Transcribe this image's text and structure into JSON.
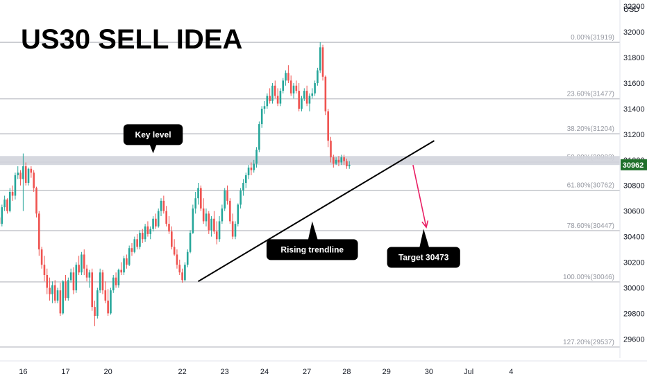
{
  "chart_data": {
    "type": "candlestick",
    "title": "US30 SELL IDEA",
    "currency": "USD",
    "y_ticks": [
      29600,
      29800,
      30000,
      30200,
      30400,
      30600,
      30800,
      31000,
      31200,
      31400,
      31600,
      31800,
      32000,
      32200
    ],
    "ylim": [
      29450,
      32250
    ],
    "x_labels": [
      {
        "label": "16",
        "idx": 9
      },
      {
        "label": "17",
        "idx": 25
      },
      {
        "label": "20",
        "idx": 41
      },
      {
        "label": "22",
        "idx": 69
      },
      {
        "label": "23",
        "idx": 85
      },
      {
        "label": "24",
        "idx": 100
      },
      {
        "label": "27",
        "idx": 116
      },
      {
        "label": "28",
        "idx": 131
      },
      {
        "label": "29",
        "idx": 146
      },
      {
        "label": "30",
        "idx": 162
      },
      {
        "label": "Jul",
        "idx": 177
      },
      {
        "label": "4",
        "idx": 193
      }
    ],
    "fib_levels": [
      {
        "label": "0.00%(31919)",
        "value": 31919
      },
      {
        "label": "23.60%(31477)",
        "value": 31477
      },
      {
        "label": "38.20%(31204)",
        "value": 31204
      },
      {
        "label": "50.00%(30983)",
        "value": 30983
      },
      {
        "label": "61.80%(30762)",
        "value": 30762
      },
      {
        "label": "78.60%(30447)",
        "value": 30447
      },
      {
        "label": "100.00%(30046)",
        "value": 30046
      },
      {
        "label": "127.20%(29537)",
        "value": 29537
      }
    ],
    "key_zone": [
      30960,
      31030
    ],
    "current_price": 30962,
    "current_price_label": "30962",
    "current_price_color": "#1f6f2a",
    "trendline": {
      "start": {
        "idx": 75,
        "value": 30050
      },
      "end": {
        "idx": 164,
        "value": 31150
      }
    },
    "projection": {
      "start": {
        "idx": 156,
        "value": 30960
      },
      "end": {
        "idx": 161,
        "value": 30473
      }
    },
    "projection_color": "#e91e63",
    "up_color": "#26a69a",
    "down_color": "#ef5350",
    "annotations": [
      {
        "text": "Key level",
        "anchor_idx": 58,
        "anchor_value": 31040,
        "pointer": "down"
      },
      {
        "text": "Rising trendline",
        "anchor_idx": 118,
        "anchor_value": 30520,
        "pointer": "up"
      },
      {
        "text": "Target 30473",
        "anchor_idx": 160,
        "anchor_value": 30460,
        "pointer": "up"
      }
    ],
    "candles": [
      [
        30550,
        30560,
        30480,
        30500
      ],
      [
        30500,
        30650,
        30480,
        30630
      ],
      [
        30630,
        30720,
        30600,
        30690
      ],
      [
        30690,
        30700,
        30580,
        30600
      ],
      [
        30600,
        30780,
        30590,
        30750
      ],
      [
        30750,
        30800,
        30680,
        30720
      ],
      [
        30720,
        30900,
        30690,
        30880
      ],
      [
        30880,
        30950,
        30850,
        30900
      ],
      [
        30900,
        30920,
        30800,
        30850
      ],
      [
        30850,
        31050,
        30600,
        30950
      ],
      [
        30950,
        30980,
        30800,
        30820
      ],
      [
        30820,
        30940,
        30800,
        30930
      ],
      [
        30930,
        30950,
        30860,
        30900
      ],
      [
        30900,
        30920,
        30750,
        30780
      ],
      [
        30780,
        30790,
        30550,
        30580
      ],
      [
        30580,
        30600,
        30250,
        30300
      ],
      [
        30300,
        30320,
        30150,
        30180
      ],
      [
        30180,
        30250,
        30050,
        30100
      ],
      [
        30100,
        30150,
        29950,
        30000
      ],
      [
        30000,
        30080,
        29900,
        29950
      ],
      [
        29950,
        30050,
        29880,
        30020
      ],
      [
        30020,
        30060,
        29880,
        29900
      ],
      [
        29900,
        30000,
        29880,
        29980
      ],
      [
        29980,
        30040,
        29780,
        29800
      ],
      [
        29800,
        30060,
        29790,
        30050
      ],
      [
        30050,
        30100,
        29900,
        29920
      ],
      [
        29920,
        30080,
        29900,
        30060
      ],
      [
        30060,
        30150,
        30040,
        30120
      ],
      [
        30120,
        30160,
        29950,
        29980
      ],
      [
        29980,
        30200,
        29960,
        30180
      ],
      [
        30180,
        30250,
        30100,
        30120
      ],
      [
        30120,
        30280,
        30100,
        30260
      ],
      [
        30260,
        30300,
        30100,
        30150
      ],
      [
        30150,
        30180,
        30050,
        30080
      ],
      [
        30080,
        30140,
        30000,
        30120
      ],
      [
        30120,
        30150,
        29820,
        29850
      ],
      [
        29850,
        29900,
        29700,
        29780
      ],
      [
        29780,
        30000,
        29760,
        29980
      ],
      [
        29980,
        30150,
        29960,
        30120
      ],
      [
        30120,
        30140,
        29950,
        29980
      ],
      [
        29980,
        30050,
        29880,
        29900
      ],
      [
        29900,
        29990,
        29780,
        29800
      ],
      [
        29800,
        30000,
        29790,
        29980
      ],
      [
        29980,
        30100,
        29960,
        30080
      ],
      [
        30080,
        30120,
        30000,
        30020
      ],
      [
        30020,
        30150,
        30000,
        30140
      ],
      [
        30140,
        30200,
        30100,
        30120
      ],
      [
        30120,
        30250,
        30100,
        30230
      ],
      [
        30230,
        30260,
        30150,
        30180
      ],
      [
        30180,
        30330,
        30170,
        30310
      ],
      [
        30310,
        30350,
        30250,
        30280
      ],
      [
        30280,
        30400,
        30270,
        30380
      ],
      [
        30380,
        30420,
        30300,
        30320
      ],
      [
        30320,
        30450,
        30300,
        30430
      ],
      [
        30430,
        30460,
        30350,
        30380
      ],
      [
        30380,
        30500,
        30360,
        30480
      ],
      [
        30480,
        30520,
        30400,
        30420
      ],
      [
        30420,
        30480,
        30380,
        30460
      ],
      [
        30460,
        30560,
        30440,
        30540
      ],
      [
        30540,
        30580,
        30460,
        30480
      ],
      [
        30480,
        30620,
        30470,
        30600
      ],
      [
        30600,
        30700,
        30560,
        30680
      ],
      [
        30680,
        30720,
        30580,
        30600
      ],
      [
        30600,
        30640,
        30480,
        30500
      ],
      [
        30500,
        30560,
        30420,
        30440
      ],
      [
        30440,
        30480,
        30300,
        30320
      ],
      [
        30320,
        30380,
        30250,
        30260
      ],
      [
        30260,
        30300,
        30150,
        30180
      ],
      [
        30180,
        30220,
        30100,
        30120
      ],
      [
        30120,
        30150,
        30040,
        30060
      ],
      [
        30060,
        30200,
        30050,
        30180
      ],
      [
        30180,
        30300,
        30160,
        30280
      ],
      [
        30280,
        30450,
        30270,
        30430
      ],
      [
        30430,
        30650,
        30420,
        30620
      ],
      [
        30620,
        30750,
        30580,
        30700
      ],
      [
        30700,
        30820,
        30650,
        30780
      ],
      [
        30780,
        30800,
        30600,
        30620
      ],
      [
        30620,
        30700,
        30500,
        30520
      ],
      [
        30520,
        30620,
        30480,
        30580
      ],
      [
        30580,
        30600,
        30420,
        30450
      ],
      [
        30450,
        30560,
        30400,
        30540
      ],
      [
        30540,
        30600,
        30420,
        30440
      ],
      [
        30440,
        30520,
        30340,
        30380
      ],
      [
        30380,
        30560,
        30360,
        30520
      ],
      [
        30520,
        30650,
        30500,
        30620
      ],
      [
        30620,
        30780,
        30600,
        30760
      ],
      [
        30760,
        30800,
        30650,
        30680
      ],
      [
        30680,
        30700,
        30500,
        30520
      ],
      [
        30520,
        30580,
        30380,
        30400
      ],
      [
        30400,
        30520,
        30380,
        30500
      ],
      [
        30500,
        30660,
        30480,
        30650
      ],
      [
        30650,
        30780,
        30620,
        30760
      ],
      [
        30760,
        30850,
        30720,
        30820
      ],
      [
        30820,
        30900,
        30780,
        30880
      ],
      [
        30880,
        30960,
        30850,
        30940
      ],
      [
        30940,
        30980,
        30880,
        30920
      ],
      [
        30920,
        31000,
        30900,
        30970
      ],
      [
        30970,
        31100,
        30940,
        31080
      ],
      [
        31080,
        31300,
        31060,
        31280
      ],
      [
        31280,
        31420,
        31250,
        31400
      ],
      [
        31400,
        31460,
        31360,
        31420
      ],
      [
        31420,
        31520,
        31400,
        31500
      ],
      [
        31500,
        31560,
        31440,
        31460
      ],
      [
        31460,
        31600,
        31440,
        31580
      ],
      [
        31580,
        31620,
        31480,
        31500
      ],
      [
        31500,
        31560,
        31420,
        31440
      ],
      [
        31440,
        31560,
        31420,
        31540
      ],
      [
        31540,
        31640,
        31520,
        31620
      ],
      [
        31620,
        31700,
        31580,
        31680
      ],
      [
        31680,
        31740,
        31600,
        31620
      ],
      [
        31620,
        31660,
        31500,
        31520
      ],
      [
        31520,
        31600,
        31480,
        31580
      ],
      [
        31580,
        31620,
        31520,
        31540
      ],
      [
        31540,
        31600,
        31380,
        31400
      ],
      [
        31400,
        31500,
        31380,
        31480
      ],
      [
        31480,
        31560,
        31460,
        31540
      ],
      [
        31540,
        31580,
        31420,
        31440
      ],
      [
        31440,
        31520,
        31380,
        31500
      ],
      [
        31500,
        31560,
        31480,
        31520
      ],
      [
        31520,
        31620,
        31500,
        31600
      ],
      [
        31600,
        31720,
        31580,
        31700
      ],
      [
        31700,
        31920,
        31680,
        31880
      ],
      [
        31880,
        31900,
        31620,
        31650
      ],
      [
        31650,
        31660,
        31350,
        31380
      ],
      [
        31380,
        31400,
        31100,
        31150
      ],
      [
        31150,
        31180,
        30980,
        31020
      ],
      [
        31020,
        31040,
        30940,
        30970
      ],
      [
        30970,
        31020,
        30960,
        31000
      ],
      [
        31000,
        31030,
        30950,
        30980
      ],
      [
        30980,
        31040,
        30960,
        31020
      ],
      [
        31020,
        31040,
        30960,
        30990
      ],
      [
        30990,
        31010,
        30930,
        30950
      ],
      [
        30950,
        30990,
        30930,
        30962
      ]
    ]
  }
}
